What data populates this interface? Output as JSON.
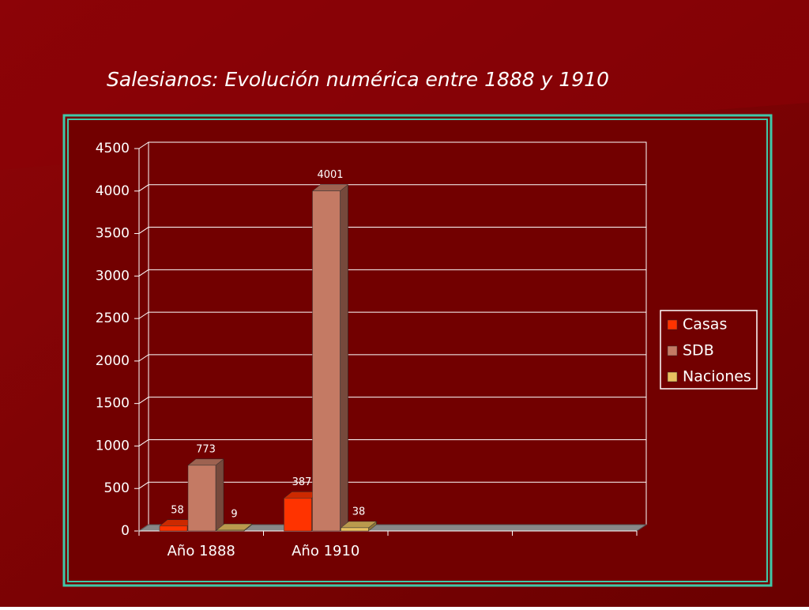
{
  "chart_data": {
    "type": "bar3d",
    "title": "Salesianos: Evolución  numérica entre 1888  y  1910",
    "categories": [
      "Año 1888",
      "Año 1910",
      null,
      null
    ],
    "series": [
      {
        "name": "Casas",
        "color": "#ff3300",
        "values": [
          58,
          387,
          null,
          null
        ]
      },
      {
        "name": "SDB",
        "color": "#c47a64",
        "values": [
          773,
          4001,
          null,
          null
        ]
      },
      {
        "name": "Naciones",
        "color": "#e8c060",
        "values": [
          9,
          38,
          null,
          null
        ]
      }
    ],
    "ylim": [
      0,
      4500
    ],
    "yticks": [
      0,
      500,
      1000,
      1500,
      2000,
      2500,
      3000,
      3500,
      4000,
      4500
    ],
    "grid": true,
    "legend": "right"
  }
}
